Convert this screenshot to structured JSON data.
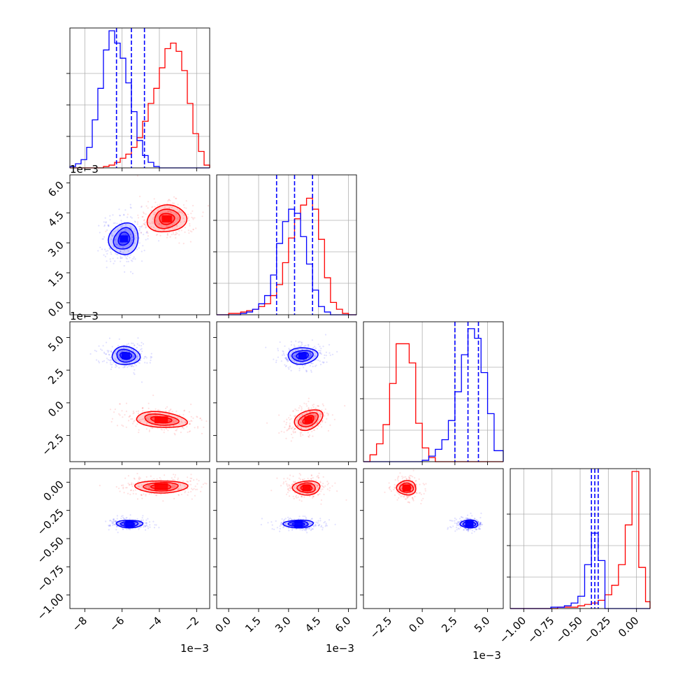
{
  "chart_data": {
    "type": "corner",
    "colors": {
      "series_a": "#ff0000",
      "series_b": "#0000ff",
      "grid": "#b0b0b0"
    },
    "grid": true,
    "quantiles_shown_for": "series_b",
    "exponent_labels": {
      "p0": "1e−3",
      "p1": "1e−3",
      "p2": "1e−3"
    },
    "parameters": [
      {
        "range": [
          -8.8,
          -1.3
        ],
        "ticks": [
          -8,
          -6,
          -4,
          -2
        ],
        "tick_labels": [
          "−8",
          "−6",
          "−4",
          "−2"
        ],
        "scale": 0.001
      },
      {
        "range": [
          -0.6,
          6.4
        ],
        "ticks": [
          0.0,
          1.5,
          3.0,
          4.5,
          6.0
        ],
        "tick_labels": [
          "0.0",
          "1.5",
          "3.0",
          "4.5",
          "6.0"
        ],
        "scale": 0.001
      },
      {
        "range": [
          -4.5,
          6.2
        ],
        "ticks": [
          -2.5,
          0.0,
          2.5,
          5.0
        ],
        "tick_labels": [
          "−2.5",
          "0.0",
          "2.5",
          "5.0"
        ],
        "scale": 0.001
      },
      {
        "range": [
          -1.12,
          0.12
        ],
        "ticks": [
          -1.0,
          -0.75,
          -0.5,
          -0.25,
          0.0
        ],
        "tick_labels": [
          "−1.00",
          "−0.75",
          "−0.50",
          "−0.25",
          "0.00"
        ],
        "scale": 1
      }
    ],
    "series_b_quantiles": [
      [
        -6.3,
        -5.5,
        -4.8
      ],
      [
        2.4,
        3.3,
        4.2
      ],
      [
        2.5,
        3.5,
        4.3
      ],
      [
        -0.4,
        -0.37,
        -0.34
      ]
    ],
    "histograms": [
      {
        "edges": [
          -8.8,
          -8.5,
          -8.2,
          -7.9,
          -7.6,
          -7.3,
          -7.0,
          -6.7,
          -6.4,
          -6.1,
          -5.8,
          -5.5,
          -5.2,
          -4.9,
          -4.6,
          -4.3,
          -4.0,
          -3.7,
          -3.4,
          -3.1,
          -2.8,
          -2.5,
          -2.2,
          -1.9,
          -1.6,
          -1.3
        ],
        "series_a": [
          0.0,
          0.0,
          0.0,
          0.0,
          0.0,
          0.0,
          0.01,
          0.02,
          0.04,
          0.07,
          0.1,
          0.15,
          0.22,
          0.34,
          0.47,
          0.58,
          0.73,
          0.87,
          0.91,
          0.85,
          0.71,
          0.47,
          0.25,
          0.12,
          0.02
        ],
        "series_b": [
          0.01,
          0.03,
          0.06,
          0.15,
          0.35,
          0.58,
          0.86,
          1.0,
          0.91,
          0.8,
          0.62,
          0.41,
          0.2,
          0.09,
          0.04,
          0.01,
          0.0,
          0.0,
          0.0,
          0.0,
          0.0,
          0.0,
          0.0,
          0.0,
          0.0
        ]
      },
      {
        "edges": [
          -0.6,
          -0.3,
          0.0,
          0.3,
          0.6,
          0.9,
          1.2,
          1.5,
          1.8,
          2.1,
          2.4,
          2.7,
          3.0,
          3.3,
          3.6,
          3.9,
          4.2,
          4.5,
          4.8,
          5.1,
          5.4,
          5.7,
          6.0,
          6.4
        ],
        "series_a": [
          0.0,
          0.0,
          0.01,
          0.01,
          0.02,
          0.03,
          0.04,
          0.06,
          0.08,
          0.14,
          0.22,
          0.38,
          0.56,
          0.7,
          0.8,
          0.85,
          0.77,
          0.55,
          0.27,
          0.09,
          0.04,
          0.01,
          0.0
        ],
        "series_b": [
          0.0,
          0.0,
          0.0,
          0.0,
          0.01,
          0.02,
          0.04,
          0.08,
          0.14,
          0.29,
          0.52,
          0.68,
          0.77,
          0.74,
          0.57,
          0.37,
          0.18,
          0.06,
          0.02,
          0.0,
          0.0,
          0.0,
          0.0
        ]
      },
      {
        "edges": [
          -4.5,
          -4.0,
          -3.5,
          -3.0,
          -2.5,
          -2.0,
          -1.5,
          -1.0,
          -0.5,
          0.0,
          0.5,
          1.0,
          1.5,
          2.0,
          2.5,
          3.0,
          3.5,
          4.0,
          4.5,
          5.0,
          5.5,
          6.2
        ],
        "series_a": [
          0.0,
          0.05,
          0.13,
          0.27,
          0.57,
          0.86,
          0.86,
          0.72,
          0.28,
          0.1,
          0.03,
          0.0,
          0.0,
          0.0,
          0.0,
          0.0,
          0.0,
          0.0,
          0.0,
          0.0,
          0.0
        ],
        "series_b": [
          0.0,
          0.0,
          0.0,
          0.0,
          0.0,
          0.0,
          0.0,
          0.0,
          0.0,
          0.01,
          0.04,
          0.09,
          0.16,
          0.3,
          0.51,
          0.78,
          0.97,
          0.9,
          0.65,
          0.35,
          0.08
        ]
      },
      {
        "edges": [
          -1.12,
          -1.06,
          -1.0,
          -0.94,
          -0.88,
          -0.82,
          -0.76,
          -0.7,
          -0.64,
          -0.58,
          -0.52,
          -0.46,
          -0.4,
          -0.34,
          -0.28,
          -0.22,
          -0.16,
          -0.1,
          -0.04,
          0.02,
          0.08,
          0.12
        ],
        "series_a": [
          0.0,
          0.0,
          0.0,
          0.0,
          0.0,
          0.0,
          0.0,
          0.01,
          0.01,
          0.01,
          0.02,
          0.03,
          0.04,
          0.06,
          0.1,
          0.17,
          0.32,
          0.61,
          1.0,
          0.3,
          0.05
        ],
        "series_b": [
          0.0,
          0.0,
          0.0,
          0.0,
          0.0,
          0.0,
          0.01,
          0.01,
          0.02,
          0.04,
          0.09,
          0.32,
          0.55,
          0.35,
          0.0,
          0.0,
          0.0,
          0.0,
          0.0,
          0.0,
          0.0
        ]
      }
    ],
    "pairs": [
      {
        "x_param": 0,
        "y_param": 1,
        "series_a": {
          "center": [
            -3.6,
            4.2
          ],
          "spread": [
            1.5,
            1.0
          ],
          "rotation": 0.12
        },
        "series_b": {
          "center": [
            -5.9,
            3.2
          ],
          "spread": [
            1.1,
            1.2
          ],
          "rotation": -0.5
        }
      },
      {
        "x_param": 0,
        "y_param": 2,
        "series_a": {
          "center": [
            -3.9,
            -1.3
          ],
          "spread": [
            2.0,
            0.85
          ],
          "rotation": -0.1
        },
        "series_b": {
          "center": [
            -5.8,
            3.6
          ],
          "spread": [
            1.1,
            1.0
          ],
          "rotation": -0.1
        }
      },
      {
        "x_param": 1,
        "y_param": 2,
        "series_a": {
          "center": [
            4.0,
            -1.3
          ],
          "spread": [
            1.1,
            1.0
          ],
          "rotation": 0.45
        },
        "series_b": {
          "center": [
            3.7,
            3.6
          ],
          "spread": [
            1.1,
            0.9
          ],
          "rotation": 0.1
        }
      },
      {
        "x_param": 0,
        "y_param": 3,
        "series_a": {
          "center": [
            -3.9,
            -0.04
          ],
          "spread": [
            2.0,
            0.08
          ],
          "rotation": 0.0
        },
        "series_b": {
          "center": [
            -5.6,
            -0.37
          ],
          "spread": [
            1.0,
            0.05
          ],
          "rotation": 0.0
        }
      },
      {
        "x_param": 1,
        "y_param": 3,
        "series_a": {
          "center": [
            3.9,
            -0.05
          ],
          "spread": [
            1.0,
            0.09
          ],
          "rotation": 0.0
        },
        "series_b": {
          "center": [
            3.5,
            -0.37
          ],
          "spread": [
            1.1,
            0.05
          ],
          "rotation": 0.0
        }
      },
      {
        "x_param": 2,
        "y_param": 3,
        "series_a": {
          "center": [
            -1.2,
            -0.05
          ],
          "spread": [
            1.1,
            0.09
          ],
          "rotation": 0.0
        },
        "series_b": {
          "center": [
            3.6,
            -0.37
          ],
          "spread": [
            1.0,
            0.05
          ],
          "rotation": 0.0
        }
      }
    ]
  }
}
